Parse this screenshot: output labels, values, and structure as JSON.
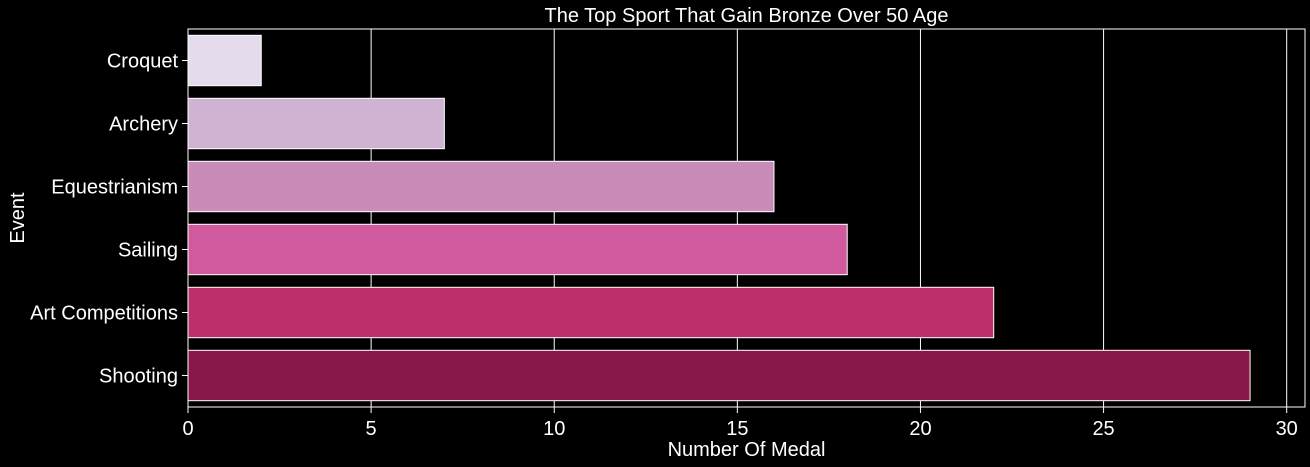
{
  "chart_data": {
    "type": "bar",
    "orientation": "horizontal",
    "title": "The Top Sport That Gain Bronze Over 50 Age",
    "xlabel": "Number Of Medal",
    "ylabel": "Event",
    "categories": [
      "Croquet",
      "Archery",
      "Equestrianism",
      "Sailing",
      "Art Competitions",
      "Shooting"
    ],
    "values": [
      2,
      7,
      16,
      18,
      22,
      29
    ],
    "bar_colors": [
      "#e4dcec",
      "#d0b3d2",
      "#c98bb9",
      "#d05a9d",
      "#be306a",
      "#881849"
    ],
    "xlim": [
      0,
      30.5
    ],
    "xticks": [
      0,
      5,
      10,
      15,
      20,
      25,
      30
    ],
    "grid": "vertical",
    "background": "#000000",
    "text_color": "#ffffff"
  }
}
